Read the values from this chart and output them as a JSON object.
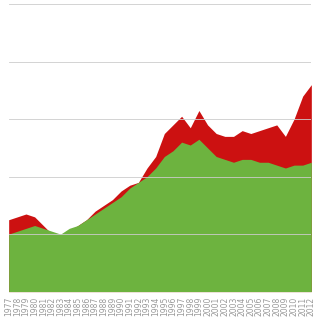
{
  "years": [
    1977,
    1978,
    1979,
    1980,
    1981,
    1982,
    1983,
    1984,
    1985,
    1986,
    1987,
    1988,
    1989,
    1990,
    1991,
    1992,
    1993,
    1994,
    1995,
    1996,
    1997,
    1998,
    1999,
    2000,
    2001,
    2002,
    2003,
    2004,
    2005,
    2006,
    2007,
    2008,
    2009,
    2010,
    2011,
    2012
  ],
  "renewable": [
    20,
    21,
    22,
    23,
    22,
    21,
    20,
    22,
    23,
    25,
    27,
    29,
    31,
    33,
    36,
    38,
    40,
    43,
    47,
    49,
    52,
    51,
    53,
    50,
    47,
    46,
    45,
    46,
    46,
    45,
    45,
    44,
    43,
    44,
    44,
    45
  ],
  "non_renewable": [
    25,
    26,
    27,
    26,
    23,
    20,
    18,
    21,
    23,
    25,
    28,
    30,
    32,
    35,
    37,
    38,
    43,
    47,
    55,
    58,
    61,
    57,
    63,
    58,
    55,
    54,
    54,
    56,
    55,
    56,
    57,
    58,
    54,
    60,
    68,
    72
  ],
  "renewable_color": "#6db33f",
  "non_renewable_color": "#cc1111",
  "background_color": "#ffffff",
  "grid_color": "#cccccc",
  "grid_linewidth": 0.6,
  "tick_label_color": "#999999",
  "tick_fontsize": 5.5,
  "ylim": [
    0,
    100
  ],
  "yticks": [
    0,
    20,
    40,
    60,
    80,
    100
  ]
}
